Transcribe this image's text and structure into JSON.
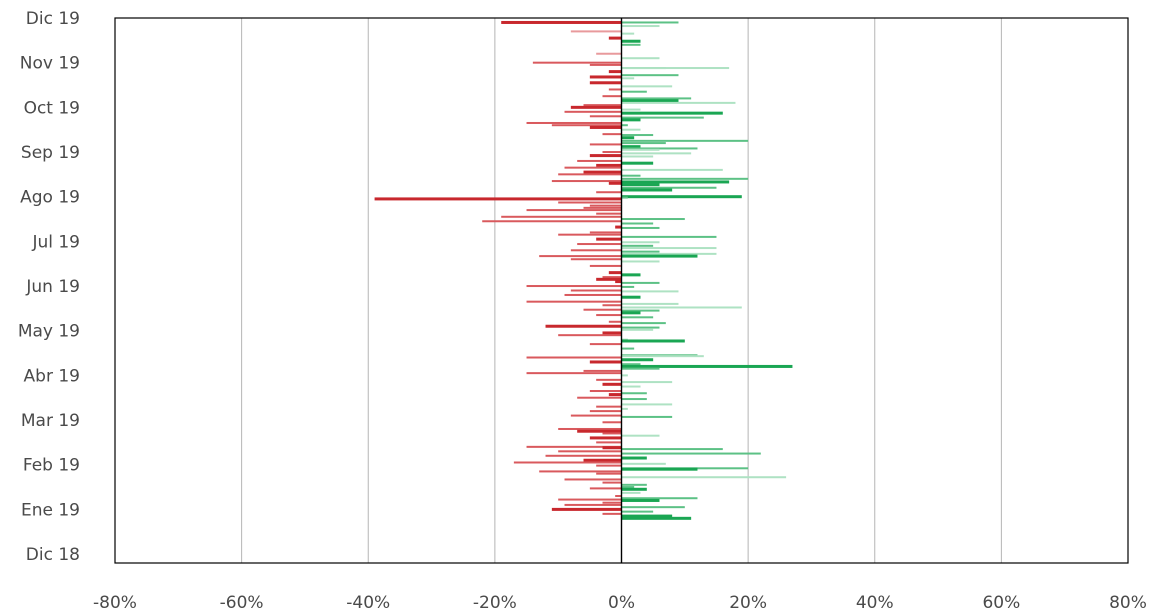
{
  "chart_data": {
    "type": "bar",
    "orientation": "horizontal",
    "title": "",
    "xlabel": "",
    "ylabel": "",
    "xlim": [
      -80,
      80
    ],
    "x_unit": "%",
    "grid": true,
    "legend": "none",
    "colors": {
      "negative": "#c8282d",
      "positive": "#1aa653",
      "axis": "#000000",
      "grid": "#b5b5b5"
    },
    "xticks": [
      "-80%",
      "-60%",
      "-40%",
      "-20%",
      "0%",
      "20%",
      "40%",
      "60%",
      "80%"
    ],
    "xtick_values": [
      -80,
      -60,
      -40,
      -20,
      0,
      20,
      40,
      60,
      80
    ],
    "yticks": [
      "Dic 19",
      "Nov 19",
      "Oct 19",
      "Sep 19",
      "Ago 19",
      "Jul 19",
      "Jun 19",
      "May 19",
      "Abr 19",
      "Mar 19",
      "Feb 19",
      "Ene 19",
      "Dic 18"
    ],
    "ytick_values": [
      0,
      10,
      20,
      30,
      40,
      50,
      60,
      70,
      80,
      90,
      100,
      110,
      120
    ],
    "ylim": [
      0,
      122
    ],
    "bars": [
      {
        "y": 1.0,
        "value": -19,
        "shade": 0
      },
      {
        "y": 1.0,
        "value": 9,
        "shade": 1
      },
      {
        "y": 1.8,
        "value": 6,
        "shade": 2
      },
      {
        "y": 3.0,
        "value": -8,
        "shade": 2
      },
      {
        "y": 3.5,
        "value": 2,
        "shade": 2
      },
      {
        "y": 4.5,
        "value": -2,
        "shade": 0
      },
      {
        "y": 5.2,
        "value": 3,
        "shade": 0
      },
      {
        "y": 6.0,
        "value": 3,
        "shade": 1
      },
      {
        "y": 8.0,
        "value": -4,
        "shade": 2
      },
      {
        "y": 9.0,
        "value": 6,
        "shade": 2
      },
      {
        "y": 10.0,
        "value": -14,
        "shade": 1
      },
      {
        "y": 10.5,
        "value": -5,
        "shade": 1
      },
      {
        "y": 11.2,
        "value": 7,
        "shade": 1
      },
      {
        "y": 11.2,
        "value": 17,
        "shade": 2
      },
      {
        "y": 12.0,
        "value": -2,
        "shade": 0
      },
      {
        "y": 12.8,
        "value": 9,
        "shade": 1
      },
      {
        "y": 13.2,
        "value": -5,
        "shade": 0
      },
      {
        "y": 13.5,
        "value": 2,
        "shade": 2
      },
      {
        "y": 14.5,
        "value": -5,
        "shade": 0
      },
      {
        "y": 15.3,
        "value": 8,
        "shade": 2
      },
      {
        "y": 16.0,
        "value": -2,
        "shade": 1
      },
      {
        "y": 16.5,
        "value": 4,
        "shade": 1
      },
      {
        "y": 17.5,
        "value": -3,
        "shade": 1
      },
      {
        "y": 18.0,
        "value": 11,
        "shade": 1
      },
      {
        "y": 18.5,
        "value": 9,
        "shade": 0
      },
      {
        "y": 19.0,
        "value": 18,
        "shade": 2
      },
      {
        "y": 19.5,
        "value": -6,
        "shade": 1
      },
      {
        "y": 20.0,
        "value": -8,
        "shade": 0
      },
      {
        "y": 20.5,
        "value": 3,
        "shade": 2
      },
      {
        "y": 21.0,
        "value": -9,
        "shade": 1
      },
      {
        "y": 21.3,
        "value": 16,
        "shade": 0
      },
      {
        "y": 22.0,
        "value": -5,
        "shade": 1
      },
      {
        "y": 22.3,
        "value": 13,
        "shade": 1
      },
      {
        "y": 22.8,
        "value": 3,
        "shade": 0
      },
      {
        "y": 23.5,
        "value": -15,
        "shade": 1
      },
      {
        "y": 24.0,
        "value": 1,
        "shade": 1
      },
      {
        "y": 24.0,
        "value": -11,
        "shade": 1
      },
      {
        "y": 24.5,
        "value": -5,
        "shade": 0
      },
      {
        "y": 25.0,
        "value": 3,
        "shade": 2
      },
      {
        "y": 26.0,
        "value": -3,
        "shade": 1
      },
      {
        "y": 26.2,
        "value": 5,
        "shade": 1
      },
      {
        "y": 26.8,
        "value": 2,
        "shade": 0
      },
      {
        "y": 27.5,
        "value": 20,
        "shade": 1
      },
      {
        "y": 28.0,
        "value": 7,
        "shade": 1
      },
      {
        "y": 28.3,
        "value": -5,
        "shade": 1
      },
      {
        "y": 28.8,
        "value": 3,
        "shade": 0
      },
      {
        "y": 29.2,
        "value": 12,
        "shade": 1
      },
      {
        "y": 29.5,
        "value": 6,
        "shade": 2
      },
      {
        "y": 30.0,
        "value": -3,
        "shade": 1
      },
      {
        "y": 30.3,
        "value": 11,
        "shade": 2
      },
      {
        "y": 30.8,
        "value": -5,
        "shade": 0
      },
      {
        "y": 31.0,
        "value": 5,
        "shade": 2
      },
      {
        "y": 32.0,
        "value": -7,
        "shade": 1
      },
      {
        "y": 32.5,
        "value": 5,
        "shade": 0
      },
      {
        "y": 33.0,
        "value": -4,
        "shade": 0
      },
      {
        "y": 33.5,
        "value": -9,
        "shade": 1
      },
      {
        "y": 34.0,
        "value": 16,
        "shade": 2
      },
      {
        "y": 34.5,
        "value": -6,
        "shade": 0
      },
      {
        "y": 35.0,
        "value": -10,
        "shade": 1
      },
      {
        "y": 35.3,
        "value": 3,
        "shade": 1
      },
      {
        "y": 36.0,
        "value": 20,
        "shade": 1
      },
      {
        "y": 36.5,
        "value": -11,
        "shade": 1
      },
      {
        "y": 36.7,
        "value": 17,
        "shade": 0
      },
      {
        "y": 37.0,
        "value": -2,
        "shade": 0
      },
      {
        "y": 37.3,
        "value": 6,
        "shade": 0
      },
      {
        "y": 38.0,
        "value": 15,
        "shade": 1
      },
      {
        "y": 38.5,
        "value": 8,
        "shade": 0
      },
      {
        "y": 39.0,
        "value": -4,
        "shade": 1
      },
      {
        "y": 40.0,
        "value": 19,
        "shade": 0
      },
      {
        "y": 40.2,
        "value": 1,
        "shade": 1
      },
      {
        "y": 40.5,
        "value": -39,
        "shade": 0
      },
      {
        "y": 41.3,
        "value": -10,
        "shade": 1
      },
      {
        "y": 42.0,
        "value": -5,
        "shade": 1
      },
      {
        "y": 42.5,
        "value": -6,
        "shade": 1
      },
      {
        "y": 43.0,
        "value": -15,
        "shade": 1
      },
      {
        "y": 43.8,
        "value": -4,
        "shade": 1
      },
      {
        "y": 44.5,
        "value": -19,
        "shade": 1
      },
      {
        "y": 45.0,
        "value": 10,
        "shade": 1
      },
      {
        "y": 45.5,
        "value": -22,
        "shade": 1
      },
      {
        "y": 46.0,
        "value": 5,
        "shade": 1
      },
      {
        "y": 46.8,
        "value": -1,
        "shade": 0
      },
      {
        "y": 47.0,
        "value": 6,
        "shade": 1
      },
      {
        "y": 48.0,
        "value": -5,
        "shade": 1
      },
      {
        "y": 48.5,
        "value": -10,
        "shade": 1
      },
      {
        "y": 49.0,
        "value": 15,
        "shade": 1
      },
      {
        "y": 49.5,
        "value": -4,
        "shade": 0
      },
      {
        "y": 50.2,
        "value": 6,
        "shade": 2
      },
      {
        "y": 50.6,
        "value": -7,
        "shade": 1
      },
      {
        "y": 51.0,
        "value": 5,
        "shade": 1
      },
      {
        "y": 51.5,
        "value": 15,
        "shade": 2
      },
      {
        "y": 52.0,
        "value": -8,
        "shade": 1
      },
      {
        "y": 52.3,
        "value": 6,
        "shade": 1
      },
      {
        "y": 52.8,
        "value": 15,
        "shade": 2
      },
      {
        "y": 53.3,
        "value": -13,
        "shade": 1
      },
      {
        "y": 53.3,
        "value": 12,
        "shade": 0
      },
      {
        "y": 54.0,
        "value": -8,
        "shade": 1
      },
      {
        "y": 54.5,
        "value": 6,
        "shade": 2
      },
      {
        "y": 55.5,
        "value": -5,
        "shade": 1
      },
      {
        "y": 57.0,
        "value": -2,
        "shade": 0
      },
      {
        "y": 57.5,
        "value": 3,
        "shade": 0
      },
      {
        "y": 58.0,
        "value": -3,
        "shade": 1
      },
      {
        "y": 58.5,
        "value": -4,
        "shade": 0
      },
      {
        "y": 59.0,
        "value": -1,
        "shade": 0
      },
      {
        "y": 59.3,
        "value": 6,
        "shade": 1
      },
      {
        "y": 60.0,
        "value": -15,
        "shade": 1
      },
      {
        "y": 60.2,
        "value": 2,
        "shade": 1
      },
      {
        "y": 61.0,
        "value": -8,
        "shade": 1
      },
      {
        "y": 61.2,
        "value": 9,
        "shade": 2
      },
      {
        "y": 62.0,
        "value": -9,
        "shade": 1
      },
      {
        "y": 62.5,
        "value": 3,
        "shade": 0
      },
      {
        "y": 63.5,
        "value": -15,
        "shade": 1
      },
      {
        "y": 64.0,
        "value": 9,
        "shade": 2
      },
      {
        "y": 64.3,
        "value": -3,
        "shade": 1
      },
      {
        "y": 64.8,
        "value": 19,
        "shade": 2
      },
      {
        "y": 65.3,
        "value": -6,
        "shade": 1
      },
      {
        "y": 65.5,
        "value": 6,
        "shade": 1
      },
      {
        "y": 66.0,
        "value": 3,
        "shade": 0
      },
      {
        "y": 66.5,
        "value": -4,
        "shade": 1
      },
      {
        "y": 67.0,
        "value": 5,
        "shade": 1
      },
      {
        "y": 68.0,
        "value": -2,
        "shade": 1
      },
      {
        "y": 68.3,
        "value": 7,
        "shade": 1
      },
      {
        "y": 69.0,
        "value": -12,
        "shade": 0
      },
      {
        "y": 69.3,
        "value": 6,
        "shade": 1
      },
      {
        "y": 69.8,
        "value": 5,
        "shade": 2
      },
      {
        "y": 70.5,
        "value": -3,
        "shade": 0
      },
      {
        "y": 71.0,
        "value": -10,
        "shade": 1
      },
      {
        "y": 72.0,
        "value": 1,
        "shade": 2
      },
      {
        "y": 72.3,
        "value": 10,
        "shade": 0
      },
      {
        "y": 73.0,
        "value": -5,
        "shade": 1
      },
      {
        "y": 74.0,
        "value": 2,
        "shade": 1
      },
      {
        "y": 75.5,
        "value": 12,
        "shade": 1
      },
      {
        "y": 75.7,
        "value": 13,
        "shade": 2
      },
      {
        "y": 76.0,
        "value": -15,
        "shade": 1
      },
      {
        "y": 76.5,
        "value": 5,
        "shade": 0
      },
      {
        "y": 77.0,
        "value": -5,
        "shade": 0
      },
      {
        "y": 77.5,
        "value": 3,
        "shade": 1
      },
      {
        "y": 78.0,
        "value": 27,
        "shade": 0
      },
      {
        "y": 78.5,
        "value": 6,
        "shade": 1
      },
      {
        "y": 79.0,
        "value": -6,
        "shade": 1
      },
      {
        "y": 79.5,
        "value": -15,
        "shade": 1
      },
      {
        "y": 80.0,
        "value": 1,
        "shade": 2
      },
      {
        "y": 81.0,
        "value": -4,
        "shade": 1
      },
      {
        "y": 81.5,
        "value": 8,
        "shade": 2
      },
      {
        "y": 82.0,
        "value": -3,
        "shade": 0
      },
      {
        "y": 82.5,
        "value": 3,
        "shade": 2
      },
      {
        "y": 83.5,
        "value": -5,
        "shade": 1
      },
      {
        "y": 84.0,
        "value": 4,
        "shade": 1
      },
      {
        "y": 84.3,
        "value": -2,
        "shade": 0
      },
      {
        "y": 85.0,
        "value": -7,
        "shade": 1
      },
      {
        "y": 85.3,
        "value": 4,
        "shade": 1
      },
      {
        "y": 86.5,
        "value": 8,
        "shade": 2
      },
      {
        "y": 87.0,
        "value": -4,
        "shade": 1
      },
      {
        "y": 87.5,
        "value": 1,
        "shade": 2
      },
      {
        "y": 88.0,
        "value": -5,
        "shade": 1
      },
      {
        "y": 89.0,
        "value": -8,
        "shade": 1
      },
      {
        "y": 89.3,
        "value": 8,
        "shade": 1
      },
      {
        "y": 90.5,
        "value": -3,
        "shade": 1
      },
      {
        "y": 92.0,
        "value": -10,
        "shade": 1
      },
      {
        "y": 92.5,
        "value": -7,
        "shade": 0
      },
      {
        "y": 93.0,
        "value": -3,
        "shade": 1
      },
      {
        "y": 93.5,
        "value": 6,
        "shade": 2
      },
      {
        "y": 94.0,
        "value": -5,
        "shade": 0
      },
      {
        "y": 95.0,
        "value": -4,
        "shade": 1
      },
      {
        "y": 96.0,
        "value": -15,
        "shade": 1
      },
      {
        "y": 96.2,
        "value": -3,
        "shade": 0
      },
      {
        "y": 96.5,
        "value": 16,
        "shade": 1
      },
      {
        "y": 97.0,
        "value": -10,
        "shade": 1
      },
      {
        "y": 97.5,
        "value": 22,
        "shade": 1
      },
      {
        "y": 98.0,
        "value": -12,
        "shade": 1
      },
      {
        "y": 98.5,
        "value": 4,
        "shade": 0
      },
      {
        "y": 99.0,
        "value": -6,
        "shade": 0
      },
      {
        "y": 99.5,
        "value": -17,
        "shade": 1
      },
      {
        "y": 99.8,
        "value": 7,
        "shade": 2
      },
      {
        "y": 100.2,
        "value": -4,
        "shade": 1
      },
      {
        "y": 100.8,
        "value": 20,
        "shade": 1
      },
      {
        "y": 101.0,
        "value": 12,
        "shade": 0
      },
      {
        "y": 101.5,
        "value": -13,
        "shade": 1
      },
      {
        "y": 102.0,
        "value": -4,
        "shade": 1
      },
      {
        "y": 102.8,
        "value": 26,
        "shade": 2
      },
      {
        "y": 103.3,
        "value": -9,
        "shade": 1
      },
      {
        "y": 104.0,
        "value": -3,
        "shade": 1
      },
      {
        "y": 104.5,
        "value": 4,
        "shade": 1
      },
      {
        "y": 105.0,
        "value": 2,
        "shade": 1
      },
      {
        "y": 105.3,
        "value": -5,
        "shade": 1
      },
      {
        "y": 105.5,
        "value": 4,
        "shade": 0
      },
      {
        "y": 106.3,
        "value": 3,
        "shade": 2
      },
      {
        "y": 107.0,
        "value": -1,
        "shade": 1
      },
      {
        "y": 107.5,
        "value": 12,
        "shade": 1
      },
      {
        "y": 107.8,
        "value": -10,
        "shade": 1
      },
      {
        "y": 108.0,
        "value": 6,
        "shade": 0
      },
      {
        "y": 108.5,
        "value": -3,
        "shade": 1
      },
      {
        "y": 109.0,
        "value": -9,
        "shade": 1
      },
      {
        "y": 109.5,
        "value": 10,
        "shade": 1
      },
      {
        "y": 110.0,
        "value": -11,
        "shade": 0
      },
      {
        "y": 110.5,
        "value": 5,
        "shade": 1
      },
      {
        "y": 111.0,
        "value": -3,
        "shade": 1
      },
      {
        "y": 111.5,
        "value": 8,
        "shade": 0
      },
      {
        "y": 112.0,
        "value": 11,
        "shade": 0
      }
    ]
  }
}
